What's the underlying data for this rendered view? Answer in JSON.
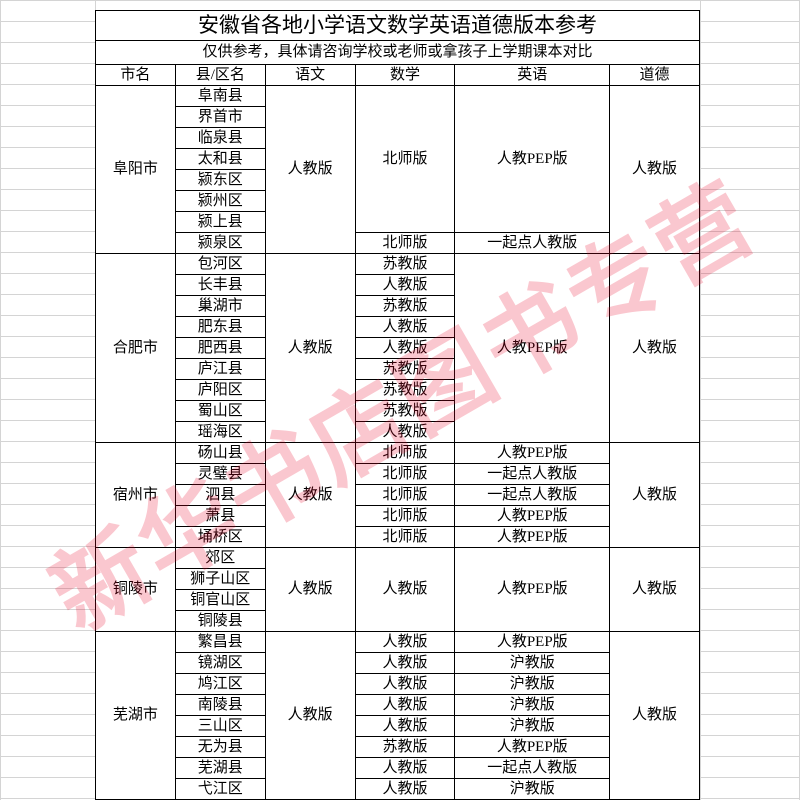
{
  "watermark_text": "新华书店图书专营",
  "watermark_color": "rgba(230,0,35,0.22)",
  "title": "安徽省各地小学语文数学英语道德版本参考",
  "subtitle": "仅供参考，具体请咨询学校或老师或拿孩子上学期课本对比",
  "columns": [
    "市名",
    "县/区名",
    "语文",
    "数学",
    "英语",
    "道德"
  ],
  "yuwen_default": "人教版",
  "daode_default": "人教版",
  "groups": [
    {
      "city": "阜阳市",
      "math_blocks": [
        {
          "text": "北师版",
          "span": 7
        },
        {
          "text": "北师版",
          "span": 1
        }
      ],
      "english_blocks": [
        {
          "text": "人教PEP版",
          "span": 7
        },
        {
          "text": "一起点人教版",
          "span": 1
        }
      ],
      "districts": [
        "阜南县",
        "界首市",
        "临泉县",
        "太和县",
        "颍东区",
        "颍州区",
        "颍上县",
        "颍泉区"
      ]
    },
    {
      "city": "合肥市",
      "math_blocks": [
        {
          "text": "苏教版",
          "span": 1
        },
        {
          "text": "人教版",
          "span": 1
        },
        {
          "text": "苏教版",
          "span": 1
        },
        {
          "text": "人教版",
          "span": 1
        },
        {
          "text": "人教版",
          "span": 1
        },
        {
          "text": "苏教版",
          "span": 1
        },
        {
          "text": "苏教版",
          "span": 1
        },
        {
          "text": "苏教版",
          "span": 1
        },
        {
          "text": "人教版",
          "span": 1
        }
      ],
      "english_blocks": [
        {
          "text": "人教PEP版",
          "span": 9
        }
      ],
      "districts": [
        "包河区",
        "长丰县",
        "巢湖市",
        "肥东县",
        "肥西县",
        "庐江县",
        "庐阳区",
        "蜀山区",
        "瑶海区"
      ]
    },
    {
      "city": "宿州市",
      "math_blocks": [
        {
          "text": "北师版",
          "span": 1
        },
        {
          "text": "北师版",
          "span": 1
        },
        {
          "text": "北师版",
          "span": 1
        },
        {
          "text": "北师版",
          "span": 1
        },
        {
          "text": "北师版",
          "span": 1
        }
      ],
      "english_blocks": [
        {
          "text": "人教PEP版",
          "span": 1
        },
        {
          "text": "一起点人教版",
          "span": 1
        },
        {
          "text": "一起点人教版",
          "span": 1
        },
        {
          "text": "人教PEP版",
          "span": 1
        },
        {
          "text": "人教PEP版",
          "span": 1
        }
      ],
      "districts": [
        "砀山县",
        "灵璧县",
        "泗县",
        "萧县",
        "埇桥区"
      ]
    },
    {
      "city": "铜陵市",
      "math_blocks": [
        {
          "text": "人教版",
          "span": 4
        }
      ],
      "english_blocks": [
        {
          "text": "人教PEP版",
          "span": 4
        }
      ],
      "districts": [
        "郊区",
        "狮子山区",
        "铜官山区",
        "铜陵县"
      ]
    },
    {
      "city": "芜湖市",
      "math_blocks": [
        {
          "text": "人教版",
          "span": 1
        },
        {
          "text": "人教版",
          "span": 1
        },
        {
          "text": "人教版",
          "span": 1
        },
        {
          "text": "人教版",
          "span": 1
        },
        {
          "text": "人教版",
          "span": 1
        },
        {
          "text": "苏教版",
          "span": 1
        },
        {
          "text": "人教版",
          "span": 1
        },
        {
          "text": "人教版",
          "span": 1
        }
      ],
      "english_blocks": [
        {
          "text": "人教PEP版",
          "span": 1
        },
        {
          "text": "沪教版",
          "span": 1
        },
        {
          "text": "沪教版",
          "span": 1
        },
        {
          "text": "沪教版",
          "span": 1
        },
        {
          "text": "沪教版",
          "span": 1
        },
        {
          "text": "人教PEP版",
          "span": 1
        },
        {
          "text": "一起点人教版",
          "span": 1
        },
        {
          "text": "沪教版",
          "span": 1
        }
      ],
      "districts": [
        "繁昌县",
        "镜湖区",
        "鸠江区",
        "南陵县",
        "三山区",
        "无为县",
        "芜湖县",
        "弋江区"
      ]
    }
  ],
  "faint_grid": {
    "vlines_x": [
      0,
      95,
      700,
      799
    ],
    "hlines_y": []
  }
}
